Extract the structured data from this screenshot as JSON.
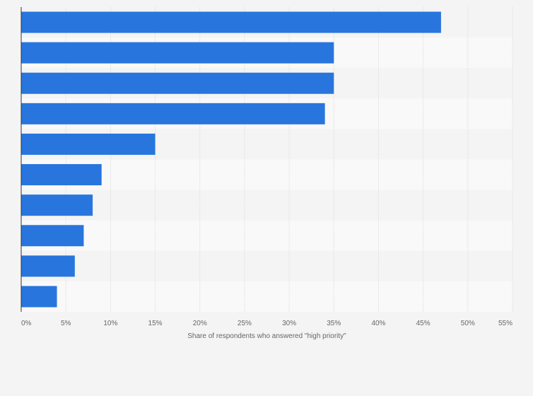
{
  "chart_data": {
    "type": "bar",
    "orientation": "horizontal",
    "categories": [
      "",
      "",
      "",
      "",
      "",
      "",
      "",
      "",
      "",
      ""
    ],
    "values": [
      47,
      35,
      35,
      34,
      15,
      9,
      8,
      7,
      6,
      4
    ],
    "xlabel": "Share of respondents who answered \"high priority\"",
    "ylabel": "",
    "xlim": [
      0,
      55
    ],
    "xticks": [
      "0%",
      "5%",
      "10%",
      "15%",
      "20%",
      "25%",
      "30%",
      "35%",
      "40%",
      "45%",
      "50%",
      "55%"
    ],
    "grid": true,
    "legend": "none"
  },
  "colors": {
    "bar": "#2876dd",
    "background": "#f4f4f4",
    "row_even": "#f4f4f4",
    "row_odd": "#f9f9f9",
    "gridline": "#dcdcdc",
    "axis": "#333333",
    "text": "#666666"
  }
}
